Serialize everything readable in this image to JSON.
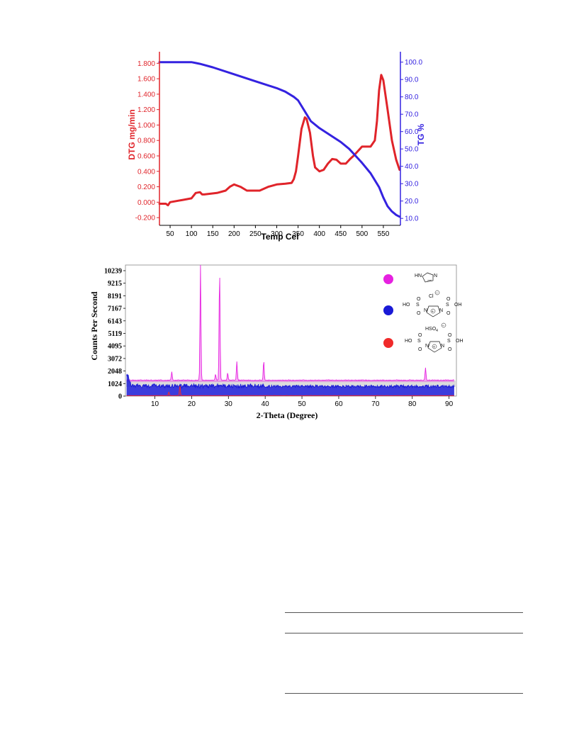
{
  "chart_data": [
    {
      "type": "line",
      "xlabel": "Temp Cel",
      "ylabel_left": "DTG mg/min",
      "ylabel_right": "TG %",
      "xlim": [
        25,
        590
      ],
      "ylim_left": [
        -0.3,
        1.95
      ],
      "ylim_right": [
        6,
        106
      ],
      "x_ticks": [
        50,
        100,
        150,
        200,
        250,
        300,
        350,
        400,
        450,
        500,
        550
      ],
      "y_left_ticks": [
        "-0.200",
        "0.000",
        "0.200",
        "0.400",
        "0.600",
        "0.800",
        "1.000",
        "1.200",
        "1.400",
        "1.600",
        "1.800"
      ],
      "y_right_ticks": [
        "10.0",
        "20.0",
        "30.0",
        "40.0",
        "50.0",
        "60.0",
        "70.0",
        "80.0",
        "90.0",
        "100.0"
      ],
      "colors": {
        "dtg": "#e0242a",
        "tg": "#3422e0"
      },
      "series": [
        {
          "axis": "left",
          "x": [
            25,
            40,
            45,
            50,
            80,
            100,
            110,
            120,
            125,
            130,
            160,
            180,
            190,
            200,
            215,
            230,
            260,
            280,
            300,
            320,
            335,
            340,
            345,
            350,
            358,
            366,
            370,
            378,
            385,
            390,
            400,
            410,
            420,
            430,
            440,
            450,
            462,
            472,
            480,
            490,
            500,
            510,
            520,
            530,
            535,
            540,
            545,
            550,
            560,
            570,
            580,
            588
          ],
          "y": [
            -0.02,
            -0.02,
            -0.04,
            0.0,
            0.03,
            0.05,
            0.12,
            0.13,
            0.1,
            0.1,
            0.12,
            0.15,
            0.2,
            0.23,
            0.2,
            0.15,
            0.15,
            0.2,
            0.23,
            0.24,
            0.25,
            0.3,
            0.4,
            0.6,
            0.95,
            1.1,
            1.08,
            0.9,
            0.6,
            0.45,
            0.4,
            0.42,
            0.5,
            0.56,
            0.55,
            0.5,
            0.5,
            0.56,
            0.6,
            0.66,
            0.72,
            0.72,
            0.72,
            0.8,
            1.05,
            1.45,
            1.65,
            1.58,
            1.2,
            0.8,
            0.55,
            0.42
          ]
        },
        {
          "axis": "right",
          "x": [
            25,
            50,
            100,
            110,
            120,
            150,
            200,
            250,
            300,
            320,
            340,
            350,
            360,
            370,
            380,
            400,
            450,
            470,
            500,
            520,
            540,
            550,
            560,
            570,
            580,
            588
          ],
          "y": [
            100,
            100,
            100,
            99.5,
            99,
            97,
            93,
            89,
            85,
            83,
            80,
            78,
            74,
            70,
            66,
            62,
            54,
            50,
            42,
            36,
            28,
            22,
            17,
            14,
            12,
            11
          ]
        }
      ]
    },
    {
      "type": "line",
      "xlabel": "2-Theta (Degree)",
      "ylabel": "Counts Per Second",
      "xlim": [
        2,
        92
      ],
      "ylim": [
        0,
        10700
      ],
      "x_ticks": [
        "10",
        "20",
        "30",
        "40",
        "50",
        "60",
        "70",
        "80",
        "90"
      ],
      "y_ticks": [
        "0",
        "1024",
        "2048",
        "3072",
        "4095",
        "5119",
        "6143",
        "7167",
        "8191",
        "9215",
        "10239"
      ],
      "series": [
        {
          "color": "#e621e0",
          "baseline": 1300,
          "peaks": [
            {
              "x": 14.6,
              "y": 2000
            },
            {
              "x": 22.4,
              "y": 10700
            },
            {
              "x": 26.5,
              "y": 1800
            },
            {
              "x": 27.6,
              "y": 10300
            },
            {
              "x": 29.8,
              "y": 1900
            },
            {
              "x": 32.3,
              "y": 2800
            },
            {
              "x": 39.6,
              "y": 2900
            },
            {
              "x": 83.6,
              "y": 2350
            }
          ]
        },
        {
          "color": "#1a1ad6",
          "baseline": 750,
          "peaks": [
            {
              "x": 2.5,
              "y": 1650
            }
          ]
        },
        {
          "color": "#f02a2a",
          "baseline": 40,
          "peaks": [
            {
              "x": 13.8,
              "y": 350
            },
            {
              "x": 16.8,
              "y": 900
            }
          ]
        }
      ],
      "legend": [
        {
          "color": "#e621e0",
          "label": "HN N"
        },
        {
          "color": "#1a1ad6",
          "label": "HO–SO2–N(+)–SO2–OH  Cl⊖"
        },
        {
          "color": "#f02a2a",
          "label": "HO–SO2–N(+)–SO2–OH  HSO4⊖"
        }
      ],
      "legend_text": {
        "imid_hn": "HN",
        "imid_n": "N",
        "cl": "Cl",
        "hso4": "HSO",
        "hso4_sub": "4",
        "ho": "HO",
        "oh": "OH",
        "s": "S",
        "o": "O",
        "n": "N",
        "plus": "+",
        "minus": "⊖"
      }
    }
  ]
}
